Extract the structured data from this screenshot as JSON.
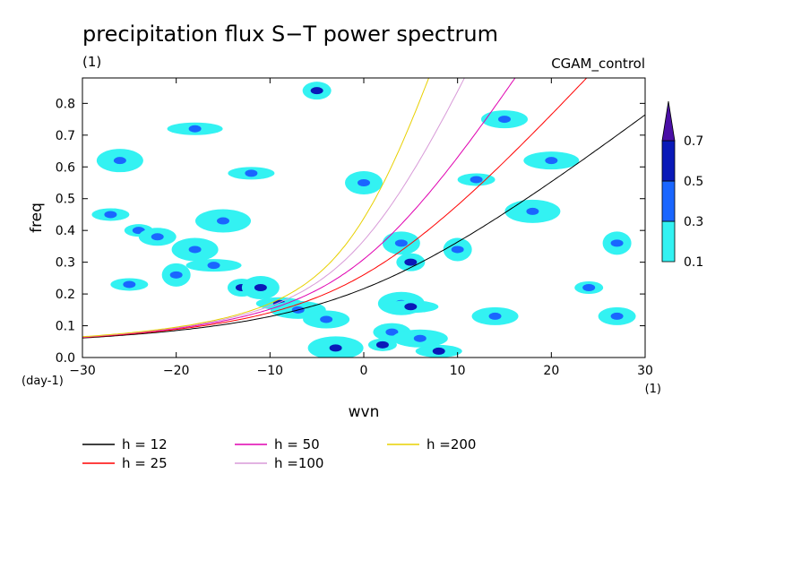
{
  "chart_data": {
    "type": "heatmap",
    "title": "precipitation flux S−T power spectrum",
    "units_label": "(1)",
    "run_name": "CGAM_control",
    "xlabel": "wvn",
    "ylabel": "freq",
    "x_unit": "(1)",
    "y_unit": "(day-1)",
    "xlim": [
      -30,
      30
    ],
    "ylim": [
      0,
      0.88
    ],
    "x_ticks": [
      "-30",
      "-20",
      "-10",
      "0",
      "10",
      "20",
      "30"
    ],
    "y_ticks": [
      "0.0",
      "0.1",
      "0.2",
      "0.3",
      "0.4",
      "0.5",
      "0.6",
      "0.7",
      "0.8"
    ],
    "colorbar": {
      "levels": [
        "0.1",
        "0.3",
        "0.5",
        "0.7"
      ],
      "colors": [
        "#33f2f2",
        "#1a66ff",
        "#0a1ab8",
        "#4a0fa6"
      ],
      "extend": "max"
    },
    "power_blobs": [
      {
        "x": -24,
        "y": 0.4,
        "v": 0.35
      },
      {
        "x": -22,
        "y": 0.38,
        "v": 0.3
      },
      {
        "x": -18,
        "y": 0.34,
        "v": 0.3
      },
      {
        "x": -16,
        "y": 0.29,
        "v": 0.35
      },
      {
        "x": -13,
        "y": 0.22,
        "v": 0.55
      },
      {
        "x": -11,
        "y": 0.22,
        "v": 0.55
      },
      {
        "x": -9,
        "y": 0.17,
        "v": 0.55
      },
      {
        "x": -7,
        "y": 0.15,
        "v": 0.35
      },
      {
        "x": -20,
        "y": 0.26,
        "v": 0.3
      },
      {
        "x": -25,
        "y": 0.23,
        "v": 0.3
      },
      {
        "x": -4,
        "y": 0.12,
        "v": 0.3
      },
      {
        "x": -3,
        "y": 0.03,
        "v": 0.55
      },
      {
        "x": 2,
        "y": 0.04,
        "v": 0.55
      },
      {
        "x": 3,
        "y": 0.08,
        "v": 0.35
      },
      {
        "x": 4,
        "y": 0.17,
        "v": 0.35
      },
      {
        "x": 5,
        "y": 0.16,
        "v": 0.55
      },
      {
        "x": 5,
        "y": 0.3,
        "v": 0.55
      },
      {
        "x": 4,
        "y": 0.36,
        "v": 0.3
      },
      {
        "x": 8,
        "y": 0.02,
        "v": 0.55
      },
      {
        "x": 6,
        "y": 0.06,
        "v": 0.3
      },
      {
        "x": 10,
        "y": 0.34,
        "v": 0.3
      },
      {
        "x": 12,
        "y": 0.56,
        "v": 0.3
      },
      {
        "x": 15,
        "y": 0.75,
        "v": 0.3
      },
      {
        "x": 18,
        "y": 0.46,
        "v": 0.3
      },
      {
        "x": 24,
        "y": 0.22,
        "v": 0.3
      },
      {
        "x": 27,
        "y": 0.13,
        "v": 0.3
      },
      {
        "x": -26,
        "y": 0.62,
        "v": 0.3
      },
      {
        "x": -18,
        "y": 0.72,
        "v": 0.3
      },
      {
        "x": -5,
        "y": 0.84,
        "v": 0.55
      },
      {
        "x": 0,
        "y": 0.55,
        "v": 0.3
      },
      {
        "x": -12,
        "y": 0.58,
        "v": 0.3
      },
      {
        "x": 20,
        "y": 0.62,
        "v": 0.3
      },
      {
        "x": 27,
        "y": 0.36,
        "v": 0.3
      },
      {
        "x": -27,
        "y": 0.45,
        "v": 0.3
      },
      {
        "x": 14,
        "y": 0.13,
        "v": 0.3
      },
      {
        "x": -15,
        "y": 0.43,
        "v": 0.3
      }
    ],
    "series": [
      {
        "name": "h = 12",
        "color": "#000000",
        "h": 12
      },
      {
        "name": "h = 25",
        "color": "#ff0000",
        "h": 25
      },
      {
        "name": "h = 50",
        "color": "#e000b0",
        "h": 50
      },
      {
        "name": "h =100",
        "color": "#d89ad8",
        "h": 100
      },
      {
        "name": "h =200",
        "color": "#e8d000",
        "h": 200
      }
    ]
  }
}
